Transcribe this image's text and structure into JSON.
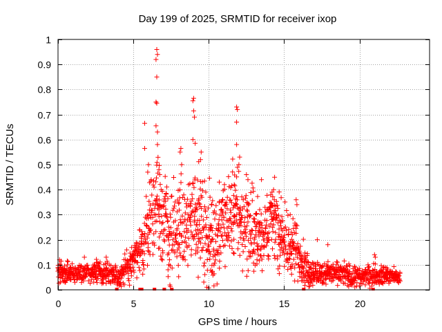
{
  "chart_data": {
    "type": "scatter",
    "title": "Day 199 of 2025, SRMTID for receiver ixop",
    "xlabel": "GPS time / hours",
    "ylabel": "SRMTID / TECUs",
    "xlim": [
      0,
      24.65
    ],
    "ylim": [
      0,
      1
    ],
    "grid": true,
    "marker": "+",
    "color": "#ff0000",
    "x_ticks": [
      0,
      5,
      10,
      15,
      20
    ],
    "x_tick_labels": [
      "0",
      "5",
      "10",
      "15",
      "20"
    ],
    "y_ticks": [
      0,
      0.1,
      0.2,
      0.3,
      0.4,
      0.5,
      0.6,
      0.7,
      0.8,
      0.9,
      1
    ],
    "y_tick_labels": [
      "0",
      "0.1",
      "0.2",
      "0.3",
      "0.4",
      "0.5",
      "0.6",
      "0.7",
      "0.8",
      "0.9",
      "1"
    ],
    "envelope": {
      "description": "approximate typical level of the point cloud, hours -> TECU",
      "x": [
        0,
        1,
        2,
        3,
        3.7,
        4.0,
        4.4,
        5.0,
        5.5,
        5.9,
        6.2,
        6.6,
        7.0,
        7.5,
        8.0,
        8.5,
        9.0,
        9.5,
        10.0,
        10.5,
        11.0,
        11.5,
        12.0,
        12.5,
        13.0,
        13.5,
        14.0,
        14.5,
        15.0,
        15.5,
        16.0,
        16.5,
        17.0,
        17.5,
        18.0,
        19.0,
        20.0,
        21.0,
        22.0,
        22.7
      ],
      "y": [
        0.07,
        0.065,
        0.07,
        0.065,
        0.07,
        0.04,
        0.08,
        0.11,
        0.15,
        0.25,
        0.3,
        0.33,
        0.28,
        0.2,
        0.24,
        0.26,
        0.32,
        0.26,
        0.2,
        0.2,
        0.28,
        0.3,
        0.3,
        0.25,
        0.22,
        0.22,
        0.27,
        0.24,
        0.2,
        0.17,
        0.14,
        0.08,
        0.07,
        0.06,
        0.07,
        0.06,
        0.05,
        0.06,
        0.055,
        0.05
      ]
    },
    "spread": {
      "x": [
        0,
        3.9,
        5.5,
        6.5,
        9.0,
        12.0,
        14.5,
        16.0,
        17.0,
        22.7
      ],
      "y": [
        0.025,
        0.025,
        0.06,
        0.13,
        0.12,
        0.11,
        0.09,
        0.06,
        0.03,
        0.02
      ]
    },
    "peaks": [
      {
        "x": 6.55,
        "y": 0.96
      },
      {
        "x": 6.6,
        "y": 0.94
      },
      {
        "x": 6.5,
        "y": 0.92
      },
      {
        "x": 6.55,
        "y": 0.85
      },
      {
        "x": 6.5,
        "y": 0.75
      },
      {
        "x": 6.55,
        "y": 0.745
      },
      {
        "x": 5.75,
        "y": 0.665
      },
      {
        "x": 6.5,
        "y": 0.655
      },
      {
        "x": 6.6,
        "y": 0.63
      },
      {
        "x": 6.6,
        "y": 0.58
      },
      {
        "x": 5.75,
        "y": 0.565
      },
      {
        "x": 8.15,
        "y": 0.565
      },
      {
        "x": 8.1,
        "y": 0.55
      },
      {
        "x": 9.0,
        "y": 0.765
      },
      {
        "x": 8.95,
        "y": 0.755
      },
      {
        "x": 9.0,
        "y": 0.715
      },
      {
        "x": 9.05,
        "y": 0.69
      },
      {
        "x": 8.95,
        "y": 0.6
      },
      {
        "x": 9.1,
        "y": 0.585
      },
      {
        "x": 9.5,
        "y": 0.55
      },
      {
        "x": 9.45,
        "y": 0.52
      },
      {
        "x": 11.85,
        "y": 0.73
      },
      {
        "x": 11.9,
        "y": 0.72
      },
      {
        "x": 11.85,
        "y": 0.67
      },
      {
        "x": 11.85,
        "y": 0.58
      },
      {
        "x": 12.05,
        "y": 0.53
      },
      {
        "x": 12.0,
        "y": 0.5
      },
      {
        "x": 6.0,
        "y": 0.5
      },
      {
        "x": 5.95,
        "y": 0.47
      },
      {
        "x": 6.7,
        "y": 0.48
      },
      {
        "x": 6.75,
        "y": 0.46
      },
      {
        "x": 8.2,
        "y": 0.5
      },
      {
        "x": 12.5,
        "y": 0.46
      },
      {
        "x": 12.6,
        "y": 0.44
      },
      {
        "x": 14.3,
        "y": 0.4
      },
      {
        "x": 14.2,
        "y": 0.39
      },
      {
        "x": 14.35,
        "y": 0.36
      },
      {
        "x": 15.8,
        "y": 0.36
      },
      {
        "x": 15.85,
        "y": 0.34
      },
      {
        "x": 15.8,
        "y": 0.26
      },
      {
        "x": 13.5,
        "y": 0.44
      },
      {
        "x": 10.7,
        "y": 0.43
      },
      {
        "x": 4.9,
        "y": 0.13
      },
      {
        "x": 3.2,
        "y": 0.13
      },
      {
        "x": 1.75,
        "y": 0.13
      },
      {
        "x": 17.2,
        "y": 0.2
      },
      {
        "x": 17.9,
        "y": 0.18
      },
      {
        "x": 21.0,
        "y": 0.14
      },
      {
        "x": 21.05,
        "y": 0.13
      },
      {
        "x": 0.1,
        "y": 0.12
      },
      {
        "x": 0.5,
        "y": 0.03
      },
      {
        "x": 4.4,
        "y": 0.02
      },
      {
        "x": 9.3,
        "y": 0.05
      },
      {
        "x": 10.2,
        "y": 0.07
      },
      {
        "x": 7.3,
        "y": 0.08
      },
      {
        "x": 13.2,
        "y": 0.12
      },
      {
        "x": 16.6,
        "y": 0.03
      }
    ],
    "zero_markers": [
      3.9,
      5.45,
      5.55,
      6.4,
      7.05,
      7.55,
      16.3,
      20.9
    ]
  }
}
